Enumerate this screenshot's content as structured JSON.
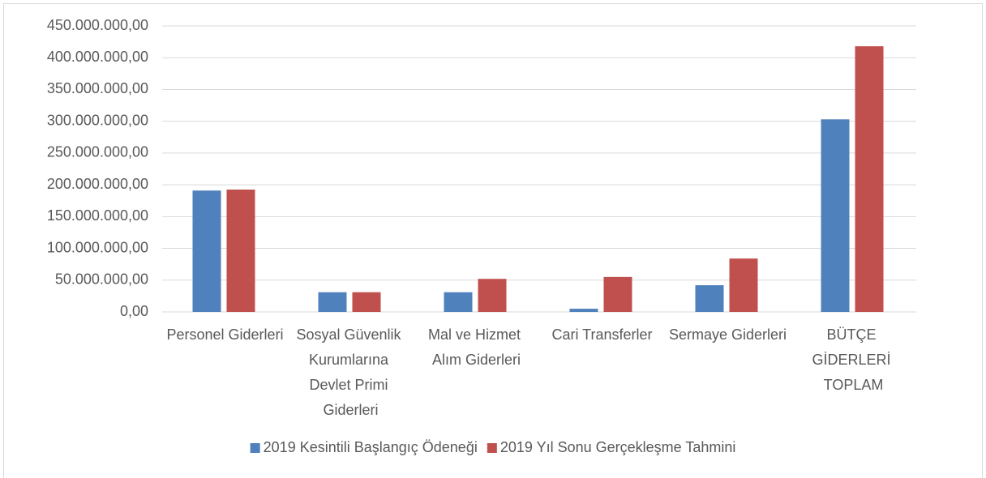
{
  "chart_data": {
    "type": "bar",
    "categories": [
      "Personel Giderleri",
      "Sosyal Güvenlik Kurumlarına Devlet Primi Giderleri",
      "Mal ve Hizmet Alım Giderleri",
      "Cari Transferler",
      "Sermaye Giderleri",
      "BÜTÇE GİDERLERİ TOPLAM"
    ],
    "series": [
      {
        "name": "2019 Kesintili Başlangıç Ödeneği",
        "color": "#4f81bd",
        "values": [
          191000000,
          31000000,
          31000000,
          5000000,
          42000000,
          303000000
        ]
      },
      {
        "name": "2019 Yıl Sonu Gerçekleşme Tahmini",
        "color": "#c0504d",
        "values": [
          192500000,
          31000000,
          52000000,
          55000000,
          84000000,
          418000000
        ]
      }
    ],
    "ylim": [
      0,
      450000000
    ],
    "yticks": [
      {
        "value": 0,
        "label": "0,00"
      },
      {
        "value": 50000000,
        "label": "50.000.000,00"
      },
      {
        "value": 100000000,
        "label": "100.000.000,00"
      },
      {
        "value": 150000000,
        "label": "150.000.000,00"
      },
      {
        "value": 200000000,
        "label": "200.000.000,00"
      },
      {
        "value": 250000000,
        "label": "250.000.000,00"
      },
      {
        "value": 300000000,
        "label": "300.000.000,00"
      },
      {
        "value": 350000000,
        "label": "350.000.000,00"
      },
      {
        "value": 400000000,
        "label": "400.000.000,00"
      },
      {
        "value": 450000000,
        "label": "450.000.000,00"
      }
    ],
    "grid": true,
    "legend": "bottom"
  }
}
